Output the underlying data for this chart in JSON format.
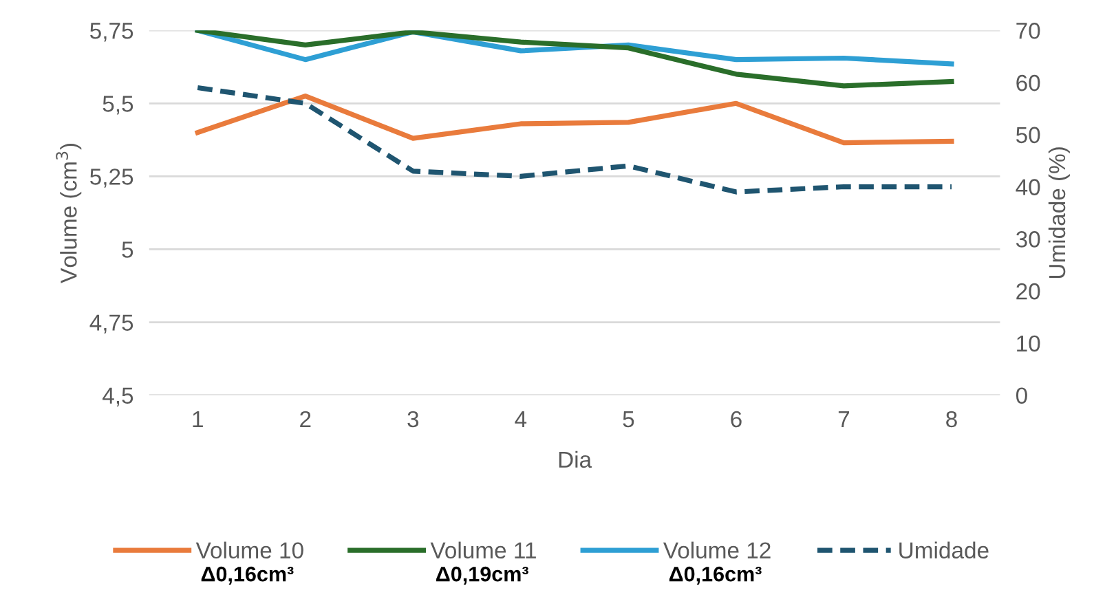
{
  "chart_data": {
    "type": "line",
    "xlabel": "Dia",
    "ylabel": "Volume (cm$^{3}$)",
    "y2label": "Umidade (%)",
    "categories": [
      "1",
      "2",
      "3",
      "4",
      "5",
      "6",
      "7",
      "8"
    ],
    "series": [
      {
        "name": "Volume 10",
        "color": "#e97b3c",
        "values": [
          5.4,
          5.525,
          5.38,
          5.43,
          5.435,
          5.5,
          5.365,
          5.37
        ]
      },
      {
        "name": "Volume 11",
        "color": "#2a6e2a",
        "values": [
          5.75,
          5.7,
          5.745,
          5.71,
          5.69,
          5.6,
          5.56,
          5.575
        ]
      },
      {
        "name": "Volume 12",
        "color": "#2e9fd4",
        "values": [
          5.75,
          5.65,
          5.745,
          5.68,
          5.7,
          5.65,
          5.655,
          5.635
        ]
      },
      {
        "name": "Umidade",
        "color": "#1f5570",
        "axis": "y2",
        "line_style": "dashed",
        "values": [
          59,
          56,
          43,
          42,
          44,
          39,
          40,
          40
        ]
      }
    ],
    "ylim": [
      4.5,
      5.75
    ],
    "yticks": [
      {
        "value": 4.5,
        "label": "4,5"
      },
      {
        "value": 4.75,
        "label": "4,75"
      },
      5,
      {
        "value": 5.25,
        "label": "5,25"
      },
      {
        "value": 5.5,
        "label": "5,5"
      },
      {
        "value": 5.75,
        "label": "5,75"
      }
    ],
    "y2lim": [
      0,
      70
    ],
    "y2ticks": [
      0,
      10,
      20,
      30,
      40,
      50,
      60,
      70
    ],
    "grid": "y",
    "legend": "bottom",
    "annotations": [
      "Δ0,16cm³",
      "Δ0,19cm³",
      "Δ0,16cm³"
    ]
  }
}
